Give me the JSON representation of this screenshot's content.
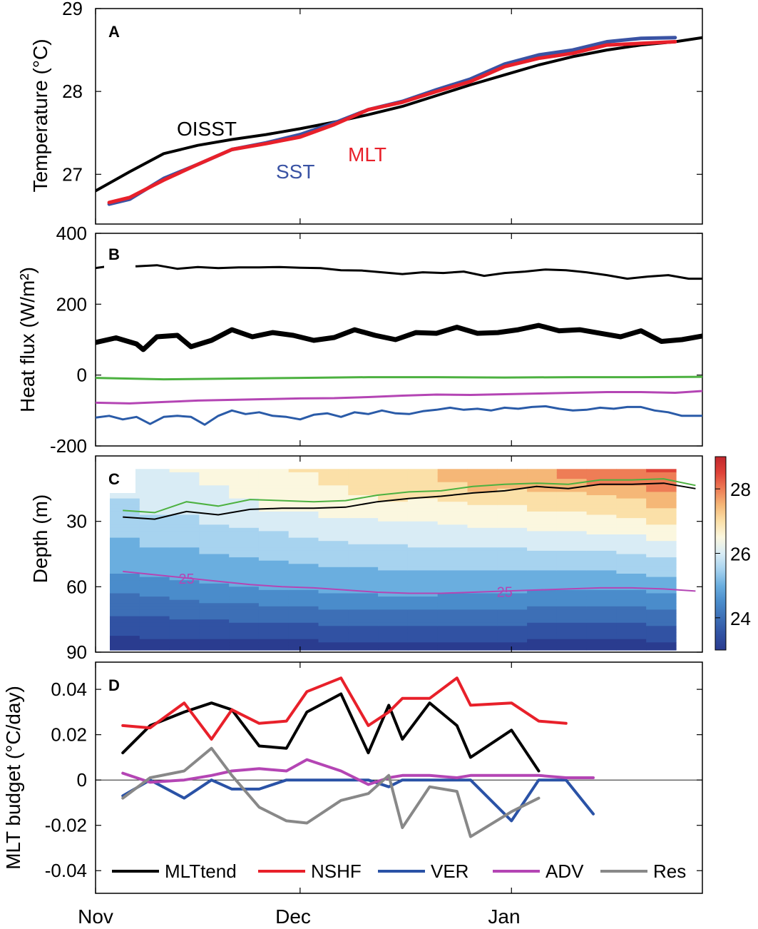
{
  "x_axis": {
    "ticks": [
      "Nov",
      "Dec",
      "Jan"
    ],
    "tick_days": [
      0,
      30,
      61
    ],
    "range_days": [
      0,
      89
    ]
  },
  "chart_data": [
    {
      "panel": "A",
      "type": "line",
      "ylabel": "Temperature (°C)",
      "ylim": [
        26.4,
        29
      ],
      "yticks": [
        27,
        28,
        29
      ],
      "x_unit": "days since Nov 1",
      "series": [
        {
          "name": "OISST",
          "color": "#000000",
          "x": [
            0,
            5,
            10,
            15,
            20,
            25,
            30,
            35,
            40,
            45,
            50,
            55,
            60,
            65,
            70,
            75,
            80,
            85,
            89
          ],
          "values": [
            26.8,
            27.03,
            27.25,
            27.35,
            27.42,
            27.48,
            27.55,
            27.63,
            27.72,
            27.82,
            27.95,
            28.08,
            28.2,
            28.32,
            28.42,
            28.5,
            28.56,
            28.6,
            28.65
          ]
        },
        {
          "name": "SST",
          "color": "#3a53a4",
          "x": [
            2,
            5,
            10,
            15,
            20,
            25,
            30,
            35,
            40,
            45,
            50,
            55,
            60,
            65,
            70,
            75,
            80,
            85
          ],
          "values": [
            26.64,
            26.7,
            26.95,
            27.12,
            27.3,
            27.38,
            27.48,
            27.62,
            27.78,
            27.88,
            28.02,
            28.15,
            28.33,
            28.44,
            28.5,
            28.6,
            28.64,
            28.65
          ]
        },
        {
          "name": "MLT",
          "color": "#e8202a",
          "x": [
            2,
            5,
            10,
            15,
            20,
            25,
            30,
            35,
            40,
            45,
            50,
            55,
            60,
            65,
            70,
            75,
            80,
            85
          ],
          "values": [
            26.66,
            26.72,
            26.93,
            27.12,
            27.3,
            27.37,
            27.45,
            27.6,
            27.78,
            27.87,
            28.0,
            28.12,
            28.3,
            28.4,
            28.46,
            28.56,
            28.58,
            28.6
          ]
        }
      ],
      "labels": [
        {
          "text": "OISST",
          "series": "OISST"
        },
        {
          "text": "SST",
          "series": "SST"
        },
        {
          "text": "MLT",
          "series": "MLT"
        }
      ]
    },
    {
      "panel": "B",
      "type": "line",
      "ylabel": "Heat flux (W/m²)",
      "ylim": [
        -200,
        400
      ],
      "yticks": [
        -200,
        0,
        200,
        400
      ],
      "x_unit": "days since Nov 1",
      "series": [
        {
          "name": "upper black",
          "color": "#000000",
          "width": 3,
          "x": [
            0,
            3,
            6,
            9,
            12,
            15,
            18,
            21,
            24,
            27,
            30,
            33,
            36,
            39,
            42,
            45,
            48,
            51,
            54,
            57,
            60,
            63,
            66,
            69,
            72,
            75,
            78,
            81,
            84,
            87,
            89
          ],
          "values": [
            302,
            310,
            307,
            310,
            300,
            305,
            302,
            304,
            304,
            305,
            303,
            302,
            296,
            295,
            290,
            285,
            290,
            288,
            292,
            280,
            288,
            292,
            298,
            296,
            290,
            282,
            272,
            278,
            282,
            272,
            272
          ]
        },
        {
          "name": "lower black",
          "color": "#000000",
          "width": 7,
          "x": [
            0,
            3,
            6,
            7,
            9,
            12,
            14,
            17,
            20,
            23,
            26,
            29,
            32,
            35,
            38,
            41,
            44,
            47,
            50,
            53,
            56,
            59,
            62,
            65,
            68,
            71,
            74,
            77,
            80,
            83,
            86,
            89
          ],
          "values": [
            92,
            105,
            88,
            72,
            108,
            112,
            80,
            98,
            128,
            108,
            120,
            112,
            98,
            106,
            128,
            112,
            100,
            120,
            118,
            135,
            118,
            120,
            128,
            140,
            125,
            128,
            118,
            108,
            125,
            95,
            100,
            110
          ]
        },
        {
          "name": "green",
          "color": "#4cb140",
          "width": 3,
          "x": [
            0,
            10,
            20,
            30,
            40,
            50,
            60,
            70,
            80,
            89
          ],
          "values": [
            -8,
            -12,
            -10,
            -8,
            -6,
            -6,
            -7,
            -6,
            -6,
            -5
          ]
        },
        {
          "name": "magenta",
          "color": "#b445b4",
          "width": 3,
          "x": [
            0,
            5,
            10,
            15,
            20,
            25,
            30,
            35,
            40,
            45,
            50,
            55,
            60,
            65,
            70,
            75,
            80,
            85,
            89
          ],
          "values": [
            -78,
            -80,
            -76,
            -72,
            -70,
            -68,
            -66,
            -65,
            -62,
            -58,
            -55,
            -56,
            -54,
            -52,
            -50,
            -48,
            -48,
            -50,
            -45
          ]
        },
        {
          "name": "blue",
          "color": "#2a5ba8",
          "width": 3,
          "x": [
            0,
            2,
            4,
            6,
            8,
            10,
            12,
            14,
            16,
            18,
            20,
            22,
            24,
            26,
            28,
            30,
            32,
            34,
            36,
            38,
            40,
            42,
            44,
            46,
            48,
            50,
            52,
            54,
            56,
            58,
            60,
            62,
            64,
            66,
            68,
            70,
            72,
            74,
            76,
            78,
            80,
            82,
            84,
            86,
            89
          ],
          "values": [
            -120,
            -115,
            -125,
            -118,
            -138,
            -118,
            -115,
            -118,
            -140,
            -115,
            -100,
            -110,
            -105,
            -115,
            -118,
            -125,
            -112,
            -108,
            -118,
            -105,
            -110,
            -100,
            -108,
            -110,
            -102,
            -98,
            -92,
            -98,
            -95,
            -100,
            -92,
            -95,
            -90,
            -88,
            -95,
            -100,
            -98,
            -92,
            -95,
            -90,
            -90,
            -100,
            -105,
            -115,
            -115
          ]
        }
      ]
    },
    {
      "panel": "C",
      "type": "heatmap",
      "ylabel": "Depth (m)",
      "ylim": [
        0,
        90
      ],
      "yticks": [
        30,
        60,
        90
      ],
      "colorbar": {
        "range": [
          23,
          29
        ],
        "ticks": [
          24,
          26,
          28
        ],
        "stops": [
          {
            "v": 23.0,
            "c": "#2a3c8f"
          },
          {
            "v": 23.5,
            "c": "#3152a3"
          },
          {
            "v": 24.0,
            "c": "#3d6fb6"
          },
          {
            "v": 24.5,
            "c": "#4a8ccb"
          },
          {
            "v": 25.0,
            "c": "#6aaedf"
          },
          {
            "v": 25.5,
            "c": "#a7d3ef"
          },
          {
            "v": 26.0,
            "c": "#d9ecf5"
          },
          {
            "v": 26.5,
            "c": "#fbf7df"
          },
          {
            "v": 27.0,
            "c": "#fbe0a8"
          },
          {
            "v": 27.5,
            "c": "#f5b777"
          },
          {
            "v": 28.0,
            "c": "#ee7d56"
          },
          {
            "v": 28.5,
            "c": "#df4238"
          },
          {
            "v": 29.0,
            "c": "#c1272d"
          }
        ]
      },
      "contour_label": "25",
      "green_line_depth": [
        25,
        26,
        21,
        23,
        20,
        20.5,
        21,
        20.5,
        18,
        16.5,
        16,
        14,
        13,
        12.5,
        13,
        11,
        11,
        10.5,
        13.5
      ],
      "black_line_depth": [
        28,
        29,
        25.5,
        27,
        24.5,
        24,
        24,
        23.5,
        21,
        19.5,
        18.5,
        17,
        16,
        14,
        15,
        13,
        13,
        12.5,
        15
      ],
      "isotherm_25_depth": [
        53,
        54.5,
        56,
        57.5,
        59,
        60,
        60.5,
        61.5,
        62.5,
        63,
        63,
        62.5,
        62,
        61.5,
        61,
        60.5,
        60.5,
        61,
        62
      ]
    },
    {
      "panel": "D",
      "type": "line",
      "ylabel": "MLT budget (°C/day)",
      "ylim": [
        -0.05,
        0.052
      ],
      "yticks": [
        -0.04,
        -0.02,
        0,
        0.02,
        0.04
      ],
      "yticklabels": [
        "-0.04",
        "-0.02",
        "0",
        "0.02",
        "0.04"
      ],
      "x_unit": "days since Nov 1",
      "x": [
        4,
        8,
        13,
        17,
        20,
        24,
        28,
        31,
        36,
        40,
        43,
        45,
        49,
        53,
        55,
        61,
        65,
        69,
        73,
        76,
        80,
        84,
        88
      ],
      "series": [
        {
          "name": "MLTtend",
          "color": "#000000",
          "values": [
            0.012,
            0.024,
            0.03,
            0.034,
            0.031,
            0.015,
            0.014,
            0.03,
            0.038,
            0.012,
            0.033,
            0.018,
            0.034,
            0.024,
            0.01,
            0.022,
            0.004,
            null,
            null,
            null,
            null,
            null,
            null
          ]
        },
        {
          "name": "NSHF",
          "color": "#e8202a",
          "values": [
            0.024,
            0.023,
            0.034,
            0.018,
            0.031,
            0.025,
            0.026,
            0.039,
            0.045,
            0.024,
            0.03,
            0.036,
            0.036,
            0.045,
            0.033,
            0.034,
            0.026,
            0.025,
            null,
            null,
            null,
            null,
            null
          ]
        },
        {
          "name": "VER",
          "color": "#2a52a6",
          "values": [
            -0.007,
            0.0,
            -0.008,
            0.0,
            -0.004,
            -0.004,
            0.0,
            0.0,
            0.0,
            0.0,
            -0.003,
            0.0,
            0.0,
            0.0,
            0.0,
            -0.018,
            0.0,
            0.0,
            -0.015,
            null,
            null,
            null,
            null
          ]
        },
        {
          "name": "ADV",
          "color": "#b445b4",
          "values": [
            0.003,
            -0.001,
            0.0,
            0.002,
            0.004,
            0.005,
            0.004,
            0.009,
            0.004,
            -0.002,
            0.001,
            0.002,
            0.002,
            0.001,
            0.002,
            0.002,
            0.002,
            0.001,
            0.001,
            null,
            null,
            null,
            null
          ]
        },
        {
          "name": "Res",
          "color": "#888888",
          "values": [
            -0.008,
            0.001,
            0.004,
            0.014,
            0.002,
            -0.012,
            -0.018,
            -0.019,
            -0.009,
            -0.006,
            0.002,
            -0.021,
            -0.003,
            -0.005,
            -0.025,
            -0.014,
            -0.008,
            null,
            null,
            null,
            null,
            null,
            null
          ]
        }
      ],
      "legend": [
        "MLTtend",
        "NSHF",
        "VER",
        "ADV",
        "Res"
      ],
      "legend_placement": "bottom"
    }
  ],
  "panel_letters": [
    "A",
    "B",
    "C",
    "D"
  ]
}
